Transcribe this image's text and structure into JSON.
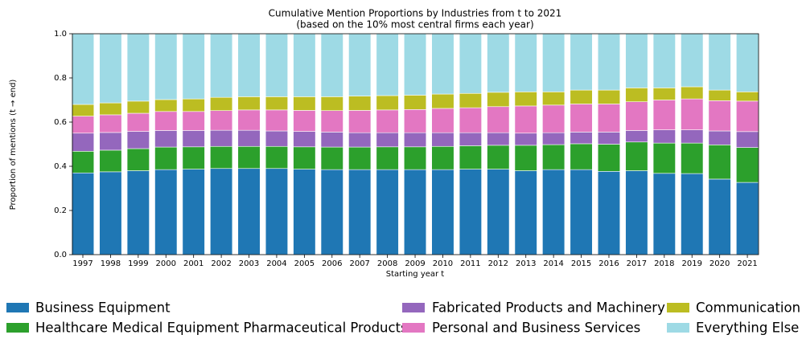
{
  "chart_data": {
    "type": "stacked_bar",
    "title": "Cumulative Mention Proportions by Industries from t to 2021",
    "subtitle": "(based on the 10% most central firms each year)",
    "x_label": "Starting year t",
    "y_label": "Proportion of mentions (t → end)",
    "categories": [
      "1997",
      "1998",
      "1999",
      "2000",
      "2001",
      "2002",
      "2003",
      "2004",
      "2005",
      "2006",
      "2007",
      "2008",
      "2009",
      "2010",
      "2011",
      "2012",
      "2013",
      "2014",
      "2015",
      "2016",
      "2017",
      "2018",
      "2019",
      "2020",
      "2021"
    ],
    "series": [
      {
        "name": "Business Equipment",
        "color": "#1f77b4",
        "values": [
          0.37,
          0.375,
          0.38,
          0.385,
          0.387,
          0.39,
          0.39,
          0.39,
          0.387,
          0.385,
          0.385,
          0.385,
          0.385,
          0.385,
          0.387,
          0.387,
          0.38,
          0.385,
          0.385,
          0.377,
          0.38,
          0.368,
          0.367,
          0.342,
          0.327
        ]
      },
      {
        "name": "Healthcare Medical Equipment Pharmaceutical Products",
        "color": "#2ca02c",
        "values": [
          0.098,
          0.098,
          0.1,
          0.102,
          0.101,
          0.1,
          0.1,
          0.1,
          0.101,
          0.102,
          0.102,
          0.103,
          0.103,
          0.105,
          0.106,
          0.108,
          0.115,
          0.113,
          0.117,
          0.123,
          0.13,
          0.137,
          0.138,
          0.155,
          0.158
        ]
      },
      {
        "name": "Fabricated Products and Machinery",
        "color": "#9467bd",
        "values": [
          0.082,
          0.08,
          0.078,
          0.075,
          0.074,
          0.073,
          0.073,
          0.07,
          0.07,
          0.068,
          0.065,
          0.064,
          0.064,
          0.062,
          0.059,
          0.057,
          0.055,
          0.054,
          0.053,
          0.055,
          0.052,
          0.06,
          0.06,
          0.063,
          0.072
        ]
      },
      {
        "name": "Personal and Business Services",
        "color": "#e377c2",
        "values": [
          0.077,
          0.08,
          0.082,
          0.086,
          0.086,
          0.089,
          0.092,
          0.095,
          0.095,
          0.097,
          0.101,
          0.103,
          0.105,
          0.11,
          0.113,
          0.118,
          0.123,
          0.125,
          0.127,
          0.127,
          0.13,
          0.135,
          0.14,
          0.137,
          0.138
        ]
      },
      {
        "name": "Communication",
        "color": "#bcbd22",
        "values": [
          0.053,
          0.054,
          0.055,
          0.054,
          0.057,
          0.06,
          0.06,
          0.06,
          0.062,
          0.063,
          0.065,
          0.065,
          0.065,
          0.065,
          0.065,
          0.065,
          0.064,
          0.06,
          0.063,
          0.063,
          0.063,
          0.055,
          0.055,
          0.048,
          0.042
        ]
      },
      {
        "name": "Everything Else",
        "color": "#9edae5",
        "values": [
          0.32,
          0.313,
          0.305,
          0.298,
          0.295,
          0.288,
          0.285,
          0.285,
          0.285,
          0.285,
          0.282,
          0.28,
          0.278,
          0.273,
          0.27,
          0.265,
          0.263,
          0.263,
          0.255,
          0.255,
          0.245,
          0.245,
          0.24,
          0.255,
          0.263
        ]
      }
    ],
    "ylim": [
      0,
      1
    ],
    "yticks": [
      {
        "value": 0,
        "label": "0.0"
      },
      0.2,
      0.4,
      0.6,
      0.8,
      {
        "value": 1,
        "label": "1.0"
      }
    ],
    "legend": "bottom"
  }
}
